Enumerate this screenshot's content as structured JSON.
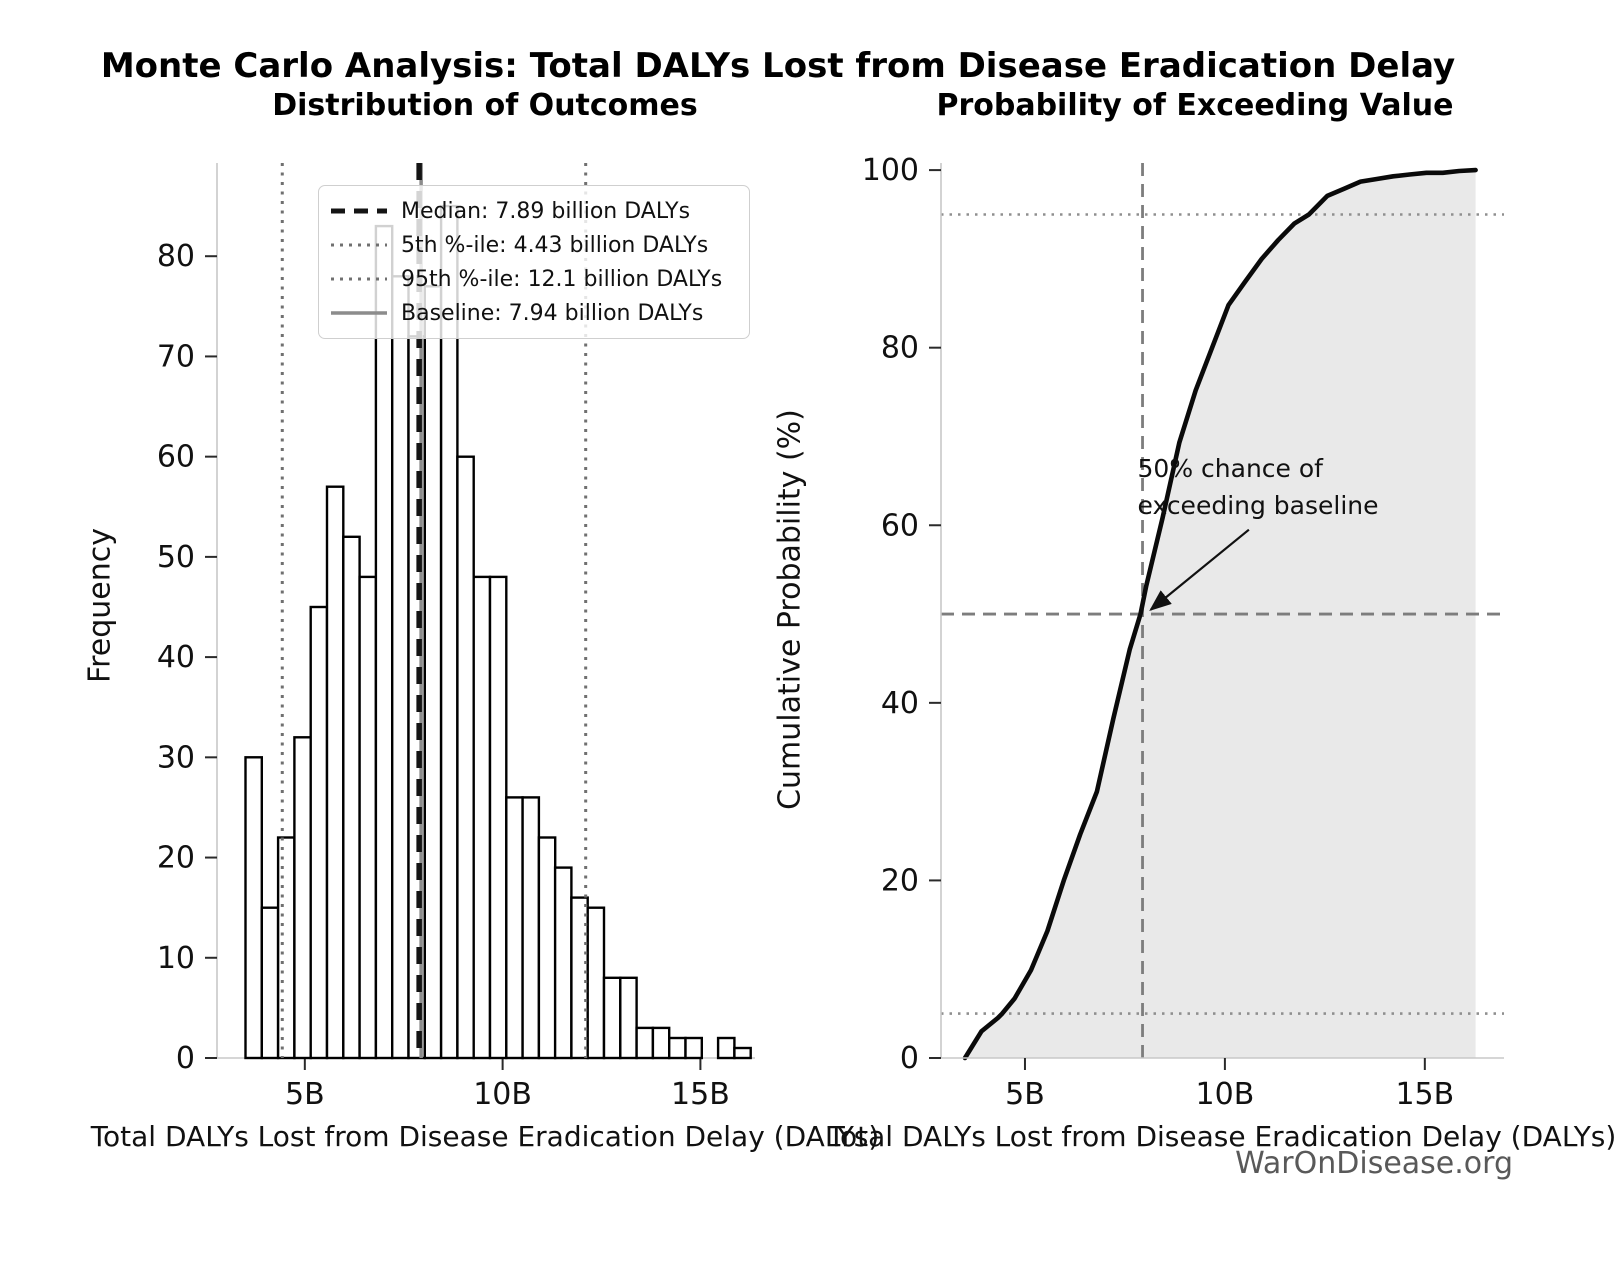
{
  "figure": {
    "title": "Monte Carlo Analysis: Total DALYs Lost from Disease Eradication Delay",
    "watermark": "WarOnDisease.org"
  },
  "chart_data": [
    {
      "type": "bar",
      "title": "Distribution of Outcomes",
      "xlabel": "Total DALYs Lost from Disease Eradication Delay (DALYs)",
      "ylabel": "Frequency",
      "x_unit": "billion DALYs",
      "bin_start": 3.5,
      "bin_width": 0.412,
      "values": [
        30,
        15,
        22,
        32,
        45,
        57,
        52,
        48,
        83,
        78,
        72,
        77,
        85,
        60,
        48,
        48,
        26,
        26,
        22,
        19,
        16,
        15,
        8,
        8,
        3,
        3,
        2,
        2,
        0,
        2,
        1
      ],
      "xlim": [
        2.78,
        16.38
      ],
      "ylim": [
        0,
        89.3
      ],
      "xticks": {
        "values": [
          5,
          10,
          15
        ],
        "labels": [
          "5B",
          "10B",
          "15B"
        ]
      },
      "yticks": [
        0,
        10,
        20,
        30,
        40,
        50,
        60,
        70,
        80
      ],
      "grid": false,
      "bar_fill": "#ffffff",
      "bar_edge": "#000000",
      "ref_lines": {
        "median": {
          "value": 7.89,
          "style": "dashed",
          "color": "#141414"
        },
        "p5": {
          "value": 4.43,
          "style": "dotted",
          "color": "#707070"
        },
        "p95": {
          "value": 12.1,
          "style": "dotted",
          "color": "#707070"
        },
        "baseline": {
          "value": 7.94,
          "style": "solid",
          "color": "#8c8c8c"
        }
      },
      "legend": {
        "position": "upper left",
        "items": [
          {
            "style": "median",
            "label": "Median: 7.89 billion DALYs"
          },
          {
            "style": "dotted",
            "label": "5th %-ile: 4.43 billion DALYs"
          },
          {
            "style": "dotted",
            "label": "95th %-ile: 12.1 billion DALYs"
          },
          {
            "style": "baseline",
            "label": "Baseline: 7.94 billion DALYs"
          }
        ]
      }
    },
    {
      "type": "line",
      "title": "Probability of Exceeding Value",
      "xlabel": "Total DALYs Lost from Disease Eradication Delay (DALYs)",
      "ylabel": "Cumulative Probability (%)",
      "x_unit": "billion DALYs",
      "points": [
        [
          3.5,
          0
        ],
        [
          3.91,
          3.0
        ],
        [
          4.32,
          4.5
        ],
        [
          4.43,
          5.0
        ],
        [
          4.74,
          6.7
        ],
        [
          5.15,
          9.9
        ],
        [
          5.56,
          14.3
        ],
        [
          5.97,
          20.0
        ],
        [
          6.38,
          25.2
        ],
        [
          6.8,
          30.0
        ],
        [
          7.21,
          38.2
        ],
        [
          7.62,
          46.0
        ],
        [
          7.89,
          50.0
        ],
        [
          8.03,
          53.1
        ],
        [
          8.44,
          60.8
        ],
        [
          8.86,
          69.3
        ],
        [
          9.27,
          75.2
        ],
        [
          9.68,
          80.0
        ],
        [
          10.09,
          84.8
        ],
        [
          10.5,
          87.4
        ],
        [
          10.92,
          90.0
        ],
        [
          11.33,
          92.1
        ],
        [
          11.74,
          94.0
        ],
        [
          12.1,
          95.0
        ],
        [
          12.56,
          97.1
        ],
        [
          12.98,
          97.9
        ],
        [
          13.39,
          98.7
        ],
        [
          13.8,
          99.0
        ],
        [
          14.21,
          99.3
        ],
        [
          14.62,
          99.5
        ],
        [
          15.04,
          99.7
        ],
        [
          15.45,
          99.7
        ],
        [
          15.86,
          99.9
        ],
        [
          16.27,
          100.0
        ]
      ],
      "fill_under": true,
      "fill_color": "#e7e7e7",
      "line_color": "#0a0a0a",
      "xlim": [
        2.9,
        16.98
      ],
      "ylim": [
        0,
        100.8
      ],
      "xticks": {
        "values": [
          5,
          10,
          15
        ],
        "labels": [
          "5B",
          "10B",
          "15B"
        ]
      },
      "yticks": [
        0,
        20,
        40,
        60,
        80,
        100
      ],
      "ref_lines": {
        "h_dotted": [
          5,
          95
        ],
        "h_dashed": [
          50
        ],
        "v_dashed": [
          7.94
        ]
      },
      "annotation": {
        "text_line1": "50% chance of",
        "text_line2": "exceeding baseline",
        "arrow_tip_xy": [
          8.15,
          50.5
        ],
        "arrow_tail_xy": [
          10.6,
          59.5
        ]
      }
    }
  ]
}
